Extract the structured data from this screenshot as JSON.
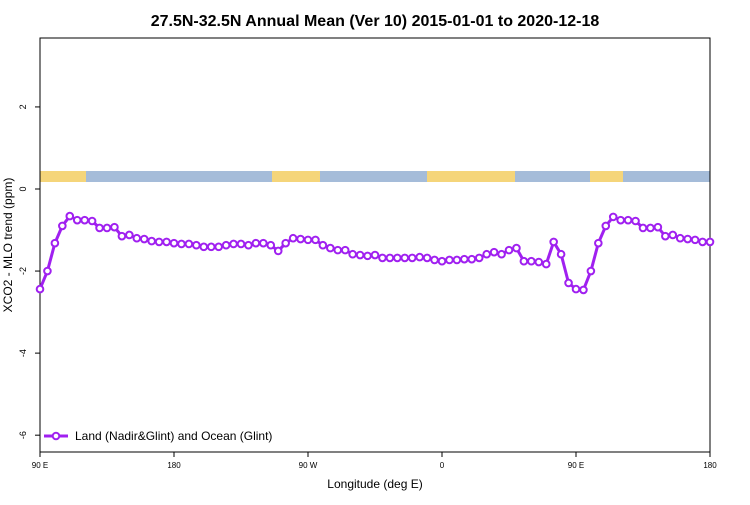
{
  "chart_data": {
    "type": "line",
    "title": "27.5N-32.5N Annual Mean (Ver 10)   2015-01-01 to 2020-12-18",
    "x_label": "Longitude (deg E)",
    "y_label": "XCO2 - MLO trend (ppm)",
    "xlim": [
      90,
      540
    ],
    "xticks": [
      {
        "value": 90,
        "label": "90 E"
      },
      {
        "value": 180,
        "label": "180"
      },
      {
        "value": 270,
        "label": "90 W"
      },
      {
        "value": 360,
        "label": "0"
      },
      {
        "value": 450,
        "label": "90 E"
      },
      {
        "value": 540,
        "label": "180"
      }
    ],
    "ylim": [
      -6.41,
      3.68
    ],
    "yticks": [
      -6,
      -4,
      -2,
      0,
      2
    ],
    "legend": "bottom-left",
    "x": [
      90,
      95,
      100,
      105,
      110,
      115,
      120,
      125,
      130,
      135,
      140,
      145,
      150,
      155,
      160,
      165,
      170,
      175,
      180,
      185,
      190,
      195,
      200,
      205,
      210,
      215,
      220,
      225,
      230,
      235,
      240,
      245,
      250,
      255,
      260,
      265,
      270,
      275,
      280,
      285,
      290,
      295,
      300,
      305,
      310,
      315,
      320,
      325,
      330,
      335,
      340,
      345,
      350,
      355,
      360,
      365,
      370,
      375,
      380,
      385,
      390,
      395,
      400,
      405,
      410,
      415,
      420,
      425,
      430,
      435,
      440,
      445,
      450,
      455,
      460,
      465,
      470,
      475,
      480,
      485,
      490,
      495,
      500,
      505,
      510,
      515,
      520,
      525,
      530,
      535,
      540
    ],
    "series": [
      {
        "name": "Land (Nadir&Glint) and Ocean (Glint)",
        "color": "#a020f0",
        "values": [
          -2.44,
          -2.0,
          -1.32,
          -0.9,
          -0.66,
          -0.76,
          -0.76,
          -0.78,
          -0.95,
          -0.95,
          -0.93,
          -1.15,
          -1.12,
          -1.2,
          -1.22,
          -1.27,
          -1.29,
          -1.29,
          -1.32,
          -1.34,
          -1.34,
          -1.37,
          -1.41,
          -1.41,
          -1.41,
          -1.37,
          -1.34,
          -1.34,
          -1.37,
          -1.32,
          -1.32,
          -1.37,
          -1.51,
          -1.32,
          -1.2,
          -1.22,
          -1.24,
          -1.24,
          -1.37,
          -1.44,
          -1.49,
          -1.49,
          -1.59,
          -1.61,
          -1.63,
          -1.61,
          -1.68,
          -1.68,
          -1.68,
          -1.68,
          -1.68,
          -1.66,
          -1.68,
          -1.73,
          -1.76,
          -1.73,
          -1.73,
          -1.71,
          -1.71,
          -1.68,
          -1.59,
          -1.54,
          -1.59,
          -1.49,
          -1.44,
          -1.76,
          -1.76,
          -1.78,
          -1.83,
          -1.29,
          -1.59,
          -2.29,
          -2.44,
          -2.46,
          -2.0,
          -1.32,
          -0.9,
          -0.68,
          -0.76,
          -0.76,
          -0.78,
          -0.95,
          -0.95,
          -0.93,
          -1.15,
          -1.12,
          -1.2,
          -1.22,
          -1.24,
          -1.29,
          -1.29
        ]
      }
    ]
  }
}
